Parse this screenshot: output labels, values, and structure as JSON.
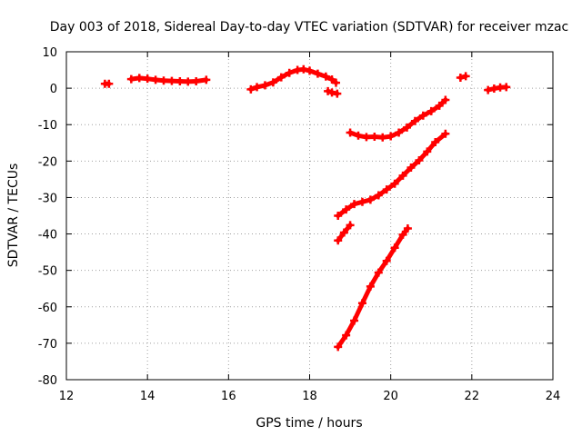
{
  "chart_data": {
    "type": "scatter",
    "title": "Day 003 of 2018, Sidereal Day-to-day VTEC variation (SDTVAR) for receiver mzac",
    "xlabel": "GPS time / hours",
    "ylabel": "SDTVAR / TECUs",
    "xlim": [
      12,
      24
    ],
    "ylim": [
      -80,
      10
    ],
    "xticks": [
      "12",
      "14",
      "16",
      "18",
      "20",
      "22",
      "24"
    ],
    "yticks": [
      "10",
      "0",
      "-10",
      "-20",
      "-30",
      "-40",
      "-50",
      "-60",
      "-70",
      "-80"
    ],
    "grid": true,
    "marker_color": "#ff0000",
    "series": [
      {
        "x": [
          12.95,
          13.05
        ],
        "y": [
          1.2,
          1.2
        ]
      },
      {
        "x": [
          13.6,
          13.8,
          14.0,
          14.2,
          14.4,
          14.6,
          14.8,
          15.0,
          15.2,
          15.45
        ],
        "y": [
          2.5,
          2.8,
          2.6,
          2.3,
          2.1,
          2.0,
          1.9,
          1.8,
          1.9,
          2.3
        ]
      },
      {
        "x": [
          16.55,
          16.7,
          16.9,
          17.1,
          17.3,
          17.5,
          17.7,
          17.85,
          18.0,
          18.2,
          18.4,
          18.55,
          18.65
        ],
        "y": [
          -0.3,
          0.3,
          0.8,
          1.6,
          3.0,
          4.2,
          5.0,
          5.2,
          4.8,
          4.0,
          3.2,
          2.4,
          1.5
        ]
      },
      {
        "x": [
          18.45,
          18.55,
          18.68
        ],
        "y": [
          -0.8,
          -1.2,
          -1.5
        ]
      },
      {
        "x": [
          19.0,
          19.2,
          19.4,
          19.6,
          19.8,
          20.0,
          20.2,
          20.4,
          20.6,
          20.8,
          21.0,
          21.2,
          21.35
        ],
        "y": [
          -12.2,
          -13.0,
          -13.4,
          -13.3,
          -13.5,
          -13.2,
          -12.2,
          -10.8,
          -9.0,
          -7.5,
          -6.3,
          -4.8,
          -3.2
        ]
      },
      {
        "x": [
          18.7,
          18.9,
          19.1,
          19.3,
          19.5,
          19.7,
          19.9,
          20.1,
          20.3,
          20.5,
          20.7,
          20.9,
          21.1,
          21.35
        ],
        "y": [
          -35.0,
          -33.3,
          -31.8,
          -31.2,
          -30.6,
          -29.4,
          -27.8,
          -26.2,
          -24.0,
          -21.8,
          -19.8,
          -17.4,
          -14.8,
          -12.5
        ]
      },
      {
        "x": [
          18.7,
          18.85,
          19.0
        ],
        "y": [
          -41.8,
          -39.6,
          -37.6
        ]
      },
      {
        "x": [
          18.7,
          18.9,
          19.1,
          19.3,
          19.5,
          19.7,
          19.9,
          20.1,
          20.3,
          20.42
        ],
        "y": [
          -71.0,
          -67.8,
          -63.8,
          -59.0,
          -54.4,
          -50.6,
          -47.4,
          -43.8,
          -40.2,
          -38.5
        ]
      },
      {
        "x": [
          21.72,
          21.85
        ],
        "y": [
          2.9,
          3.3
        ]
      },
      {
        "x": [
          22.4,
          22.55,
          22.7,
          22.85
        ],
        "y": [
          -0.5,
          -0.1,
          0.2,
          0.3
        ]
      }
    ]
  }
}
